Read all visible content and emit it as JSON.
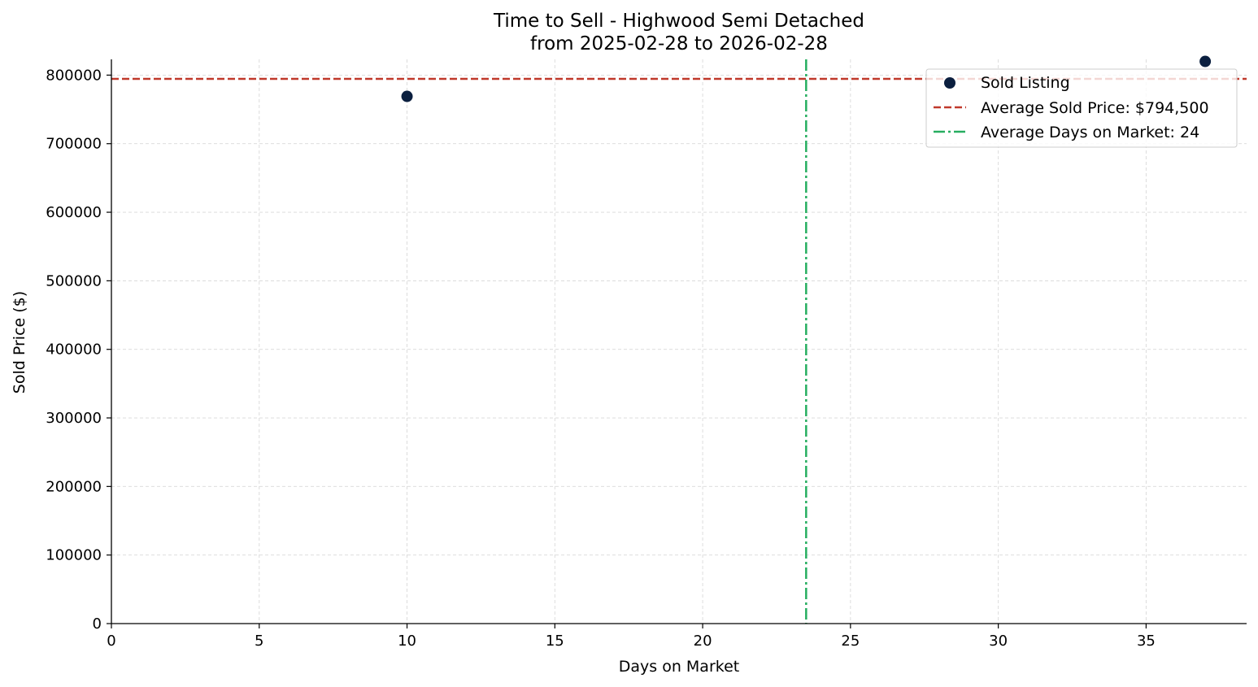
{
  "chart_data": {
    "type": "scatter",
    "title": "Time to Sell - Highwood Semi Detached",
    "subtitle": "from 2025-02-28 to 2026-02-28",
    "xlabel": "Days on Market",
    "ylabel": "Sold Price ($)",
    "xlim": [
      0,
      38.4
    ],
    "ylim": [
      0,
      823000
    ],
    "x_ticks": [
      0,
      5,
      10,
      15,
      20,
      25,
      30,
      35
    ],
    "y_ticks": [
      0,
      100000,
      200000,
      300000,
      400000,
      500000,
      600000,
      700000,
      800000
    ],
    "grid": true,
    "legend_position": "top-right",
    "series": [
      {
        "name": "Sold Listing",
        "color": "#0b1f3f",
        "points": [
          {
            "x": 10,
            "y": 769000
          },
          {
            "x": 37,
            "y": 820000
          }
        ]
      }
    ],
    "reference_lines": [
      {
        "orientation": "horizontal",
        "value": 794500,
        "label": "Average Sold Price: $794,500",
        "color": "#c0392b",
        "style": "dashed"
      },
      {
        "orientation": "vertical",
        "value": 23.5,
        "label": "Average Days on Market: 24",
        "color": "#27ae60",
        "style": "dashdot"
      }
    ]
  }
}
